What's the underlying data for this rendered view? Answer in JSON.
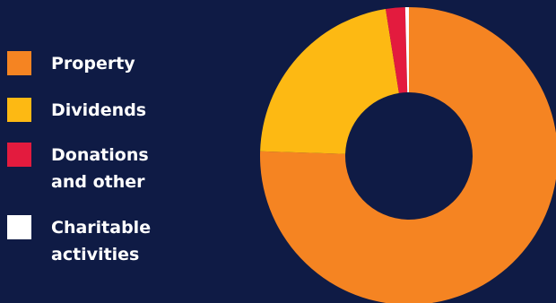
{
  "chart_data": {
    "type": "pie",
    "title": "",
    "donut": true,
    "categories": [
      "Property",
      "Dividends",
      "Donations and other",
      "Charitable activities"
    ],
    "values": [
      75.5,
      22,
      2.1,
      0.4
    ],
    "colors": [
      "#f58422",
      "#fdb913",
      "#e31b3e",
      "#ffffff"
    ],
    "legend_position": "left"
  },
  "legend": {
    "items": [
      {
        "label": "Property",
        "color": "#f58422"
      },
      {
        "label": "Dividends",
        "color": "#fdb913"
      },
      {
        "label": "Donations\nand other",
        "color": "#e31b3e"
      },
      {
        "label": "Charitable\nactivities",
        "color": "#ffffff"
      }
    ]
  },
  "colors": {
    "background": "#0f1b45"
  }
}
